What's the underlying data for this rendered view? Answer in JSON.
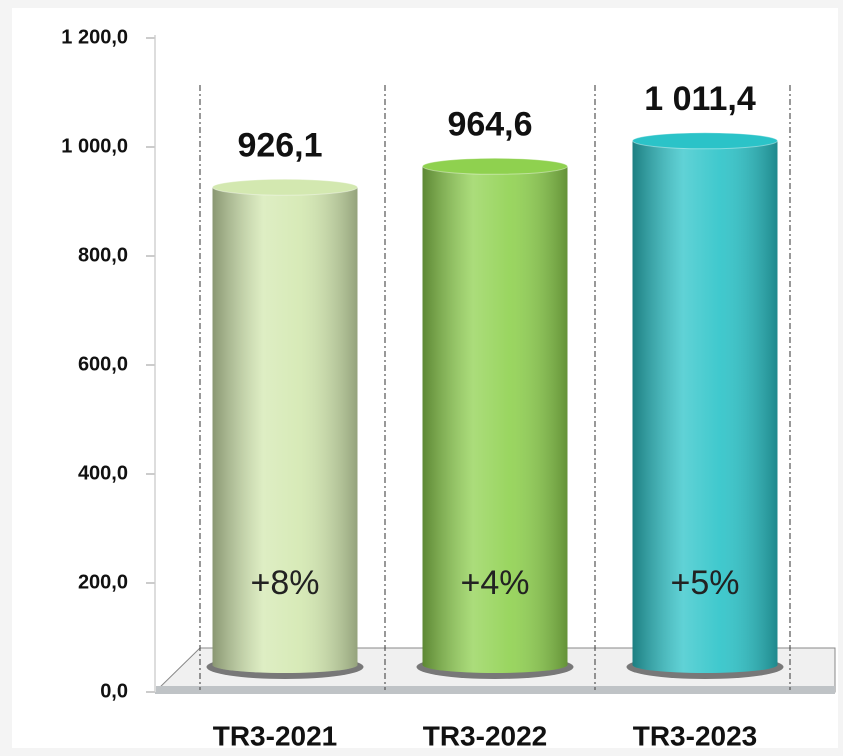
{
  "chart_data": {
    "type": "bar",
    "categories": [
      "TR3-2021",
      "TR3-2022",
      "TR3-2023"
    ],
    "values": [
      926.1,
      964.6,
      1011.4
    ],
    "value_labels": [
      "926,1",
      "964,6",
      "1 011,4"
    ],
    "annotations": [
      "+8%",
      "+4%",
      "+5%"
    ],
    "colors": [
      "#d3e8b0",
      "#8fd14f",
      "#2bc3c8"
    ],
    "ylim": [
      0,
      1200
    ],
    "yticks": [
      {
        "value": 0,
        "label": "0,0"
      },
      {
        "value": 200,
        "label": "200,0"
      },
      {
        "value": 400,
        "label": "400,0"
      },
      {
        "value": 600,
        "label": "600,0"
      },
      {
        "value": 800,
        "label": "800,0"
      },
      {
        "value": 1000,
        "label": "1 000,0"
      },
      {
        "value": 1200,
        "label": "1 200,0"
      }
    ]
  }
}
